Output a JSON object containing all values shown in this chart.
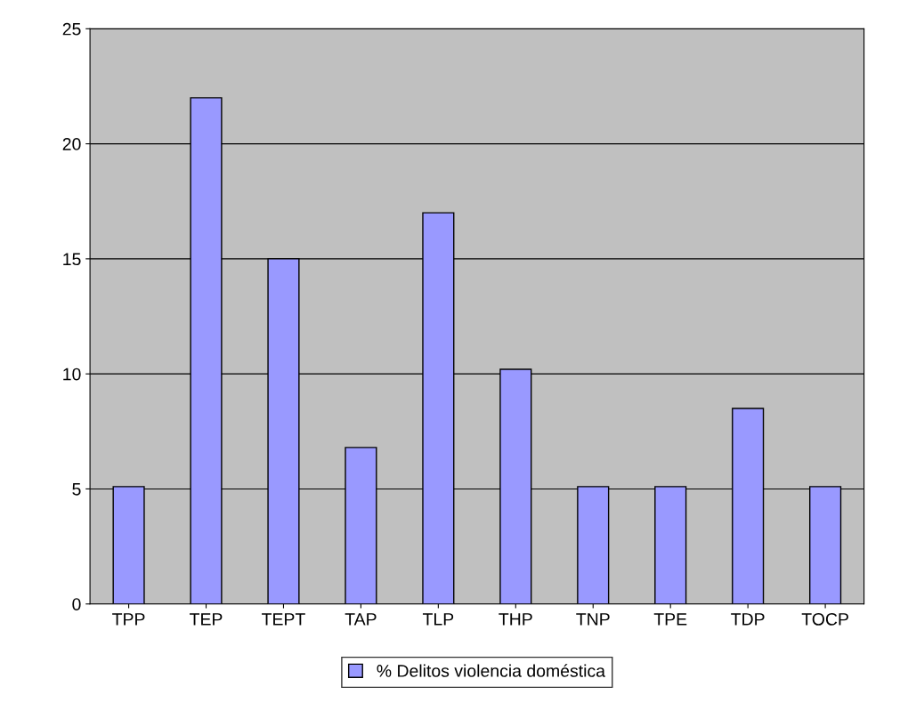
{
  "chart_data": {
    "type": "bar",
    "categories": [
      "TPP",
      "TEP",
      "TEPT",
      "TAP",
      "TLP",
      "THP",
      "TNP",
      "TPE",
      "TDP",
      "TOCP"
    ],
    "series": [
      {
        "name": "% Delitos violencia doméstica",
        "color": "#9999ff",
        "values": [
          5.1,
          22,
          15,
          6.8,
          17,
          10.2,
          5.1,
          5.1,
          8.5,
          5.1
        ]
      }
    ],
    "ylim": [
      0,
      25
    ],
    "yticks": [
      0,
      5,
      10,
      15,
      20,
      25
    ],
    "grid": "y",
    "legend": "bottom"
  }
}
